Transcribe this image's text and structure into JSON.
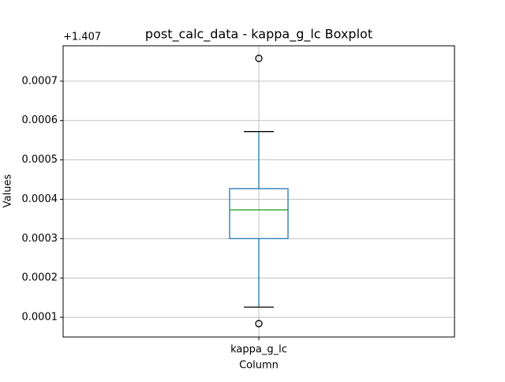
{
  "chart_data": {
    "type": "box",
    "title": "post_calc_data - kappa_g_lc Boxplot",
    "xlabel": "Column",
    "ylabel": "Values",
    "offset_text": "+1.407",
    "categories": [
      "kappa_g_lc"
    ],
    "boxes": [
      {
        "whislo": 0.000126,
        "q1": 0.0003,
        "med": 0.000373,
        "q3": 0.000427,
        "whishi": 0.000572,
        "fliers": [
          0.000758,
          8.4e-05
        ]
      }
    ],
    "box_color": "#1f77b4",
    "median_color": "#2ca02c",
    "whisker_color": "#1f77b4",
    "cap_color": "#000000",
    "ylim": [
      5e-05,
      0.00079
    ],
    "yticks": [
      0.0001,
      0.0002,
      0.0003,
      0.0004,
      0.0005,
      0.0006,
      0.0007
    ],
    "grid": true
  }
}
